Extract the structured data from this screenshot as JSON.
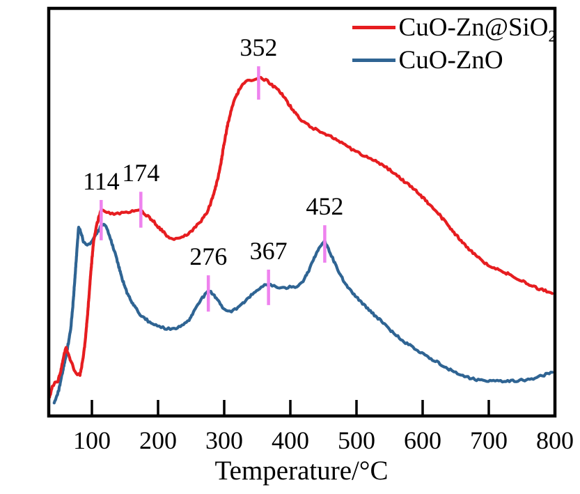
{
  "figure": {
    "background": "#ffffff"
  },
  "legend": {
    "items": [
      {
        "name": "CuO-Zn@SiO2",
        "label": "CuO-Zn@SiO",
        "label_sub": "2",
        "color": "#e61d20"
      },
      {
        "name": "CuO-ZnO",
        "label": "CuO-ZnO",
        "label_sub": "",
        "color": "#2f6493"
      }
    ]
  },
  "chart_data": {
    "type": "line",
    "title": "",
    "xlabel": "Temperature/°C",
    "ylabel": "",
    "x_ticks": [
      100,
      200,
      300,
      400,
      500,
      600,
      700,
      800
    ],
    "xlim": [
      35,
      800
    ],
    "y_axis": "intensity (arbitrary units, unlabeled axis)",
    "grid": false,
    "legend_position": "top-right",
    "annotation_marker_color": "#ee82ee",
    "annotations": [
      {
        "label": "114",
        "t": 114,
        "series": "CuO-Zn@SiO2",
        "u_top": 0.53,
        "u_bottom": 0.431
      },
      {
        "label": "174",
        "t": 174,
        "series": "CuO-Zn@SiO2",
        "u_top": 0.55,
        "u_bottom": 0.462
      },
      {
        "label": "352",
        "t": 352,
        "series": "CuO-Zn@SiO2",
        "u_top": 0.858,
        "u_bottom": 0.776
      },
      {
        "label": "276",
        "t": 276,
        "series": "CuO-ZnO",
        "u_top": 0.345,
        "u_bottom": 0.256
      },
      {
        "label": "367",
        "t": 367,
        "series": "CuO-ZnO",
        "u_top": 0.359,
        "u_bottom": 0.272
      },
      {
        "label": "452",
        "t": 452,
        "series": "CuO-ZnO",
        "u_top": 0.468,
        "u_bottom": 0.376
      }
    ],
    "series": [
      {
        "name": "CuO-Zn@SiO2",
        "color": "#e61d20",
        "peaks_celsius": [
          114,
          174,
          352
        ],
        "points": [
          [
            36,
            0.046
          ],
          [
            40,
            0.072
          ],
          [
            44,
            0.08
          ],
          [
            48,
            0.083
          ],
          [
            53,
            0.11
          ],
          [
            57,
            0.145
          ],
          [
            61,
            0.169
          ],
          [
            64,
            0.155
          ],
          [
            68,
            0.135
          ],
          [
            73,
            0.115
          ],
          [
            78,
            0.103
          ],
          [
            82,
            0.101
          ],
          [
            86,
            0.135
          ],
          [
            90,
            0.185
          ],
          [
            94,
            0.26
          ],
          [
            98,
            0.345
          ],
          [
            102,
            0.42
          ],
          [
            106,
            0.46
          ],
          [
            110,
            0.485
          ],
          [
            114,
            0.504
          ],
          [
            120,
            0.5
          ],
          [
            128,
            0.497
          ],
          [
            136,
            0.496
          ],
          [
            145,
            0.497
          ],
          [
            152,
            0.5
          ],
          [
            161,
            0.503
          ],
          [
            168,
            0.504
          ],
          [
            174,
            0.503
          ],
          [
            180,
            0.495
          ],
          [
            187,
            0.487
          ],
          [
            194,
            0.476
          ],
          [
            200,
            0.465
          ],
          [
            207,
            0.453
          ],
          [
            213,
            0.443
          ],
          [
            219,
            0.436
          ],
          [
            224,
            0.434
          ],
          [
            230,
            0.436
          ],
          [
            236,
            0.438
          ],
          [
            243,
            0.445
          ],
          [
            250,
            0.453
          ],
          [
            257,
            0.464
          ],
          [
            263,
            0.475
          ],
          [
            269,
            0.487
          ],
          [
            274,
            0.499
          ],
          [
            279,
            0.52
          ],
          [
            284,
            0.545
          ],
          [
            290,
            0.58
          ],
          [
            295,
            0.619
          ],
          [
            300,
            0.67
          ],
          [
            305,
            0.713
          ],
          [
            310,
            0.745
          ],
          [
            314,
            0.768
          ],
          [
            319,
            0.787
          ],
          [
            323,
            0.802
          ],
          [
            328,
            0.812
          ],
          [
            333,
            0.819
          ],
          [
            338,
            0.823
          ],
          [
            344,
            0.826
          ],
          [
            348,
            0.827
          ],
          [
            353,
            0.829
          ],
          [
            358,
            0.827
          ],
          [
            363,
            0.824
          ],
          [
            368,
            0.818
          ],
          [
            372,
            0.812
          ],
          [
            378,
            0.805
          ],
          [
            384,
            0.797
          ],
          [
            389,
            0.785
          ],
          [
            394,
            0.773
          ],
          [
            400,
            0.76
          ],
          [
            406,
            0.747
          ],
          [
            411,
            0.737
          ],
          [
            415,
            0.728
          ],
          [
            421,
            0.72
          ],
          [
            427,
            0.713
          ],
          [
            432,
            0.708
          ],
          [
            438,
            0.704
          ],
          [
            445,
            0.698
          ],
          [
            452,
            0.692
          ],
          [
            459,
            0.687
          ],
          [
            466,
            0.682
          ],
          [
            475,
            0.672
          ],
          [
            485,
            0.662
          ],
          [
            495,
            0.653
          ],
          [
            504,
            0.645
          ],
          [
            513,
            0.638
          ],
          [
            522,
            0.631
          ],
          [
            531,
            0.622
          ],
          [
            540,
            0.614
          ],
          [
            548,
            0.606
          ],
          [
            555,
            0.598
          ],
          [
            564,
            0.587
          ],
          [
            572,
            0.576
          ],
          [
            581,
            0.565
          ],
          [
            590,
            0.554
          ],
          [
            599,
            0.538
          ],
          [
            608,
            0.523
          ],
          [
            616,
            0.51
          ],
          [
            624,
            0.496
          ],
          [
            633,
            0.478
          ],
          [
            642,
            0.46
          ],
          [
            651,
            0.443
          ],
          [
            660,
            0.427
          ],
          [
            668,
            0.413
          ],
          [
            676,
            0.4
          ],
          [
            685,
            0.388
          ],
          [
            694,
            0.376
          ],
          [
            703,
            0.368
          ],
          [
            713,
            0.361
          ],
          [
            722,
            0.354
          ],
          [
            731,
            0.347
          ],
          [
            740,
            0.34
          ],
          [
            750,
            0.333
          ],
          [
            759,
            0.325
          ],
          [
            768,
            0.318
          ],
          [
            776,
            0.312
          ],
          [
            783,
            0.308
          ],
          [
            790,
            0.305
          ],
          [
            796,
            0.303
          ]
        ]
      },
      {
        "name": "CuO-ZnO",
        "color": "#2f6493",
        "peaks_celsius": [
          276,
          367,
          452
        ],
        "points": [
          [
            43,
            0.032
          ],
          [
            50,
            0.063
          ],
          [
            56,
            0.111
          ],
          [
            62,
            0.157
          ],
          [
            68,
            0.214
          ],
          [
            72,
            0.286
          ],
          [
            75,
            0.354
          ],
          [
            78,
            0.422
          ],
          [
            80,
            0.465
          ],
          [
            83,
            0.453
          ],
          [
            87,
            0.427
          ],
          [
            93,
            0.417
          ],
          [
            99,
            0.427
          ],
          [
            106,
            0.446
          ],
          [
            113,
            0.463
          ],
          [
            118,
            0.472
          ],
          [
            123,
            0.46
          ],
          [
            129,
            0.431
          ],
          [
            137,
            0.388
          ],
          [
            145,
            0.34
          ],
          [
            153,
            0.303
          ],
          [
            163,
            0.272
          ],
          [
            173,
            0.248
          ],
          [
            185,
            0.233
          ],
          [
            199,
            0.221
          ],
          [
            213,
            0.214
          ],
          [
            227,
            0.215
          ],
          [
            236,
            0.221
          ],
          [
            247,
            0.236
          ],
          [
            256,
            0.262
          ],
          [
            265,
            0.286
          ],
          [
            273,
            0.301
          ],
          [
            278,
            0.308
          ],
          [
            285,
            0.296
          ],
          [
            294,
            0.274
          ],
          [
            303,
            0.258
          ],
          [
            311,
            0.256
          ],
          [
            321,
            0.265
          ],
          [
            330,
            0.28
          ],
          [
            341,
            0.296
          ],
          [
            351,
            0.309
          ],
          [
            361,
            0.32
          ],
          [
            370,
            0.323
          ],
          [
            378,
            0.318
          ],
          [
            389,
            0.313
          ],
          [
            399,
            0.316
          ],
          [
            410,
            0.318
          ],
          [
            418,
            0.328
          ],
          [
            427,
            0.354
          ],
          [
            435,
            0.383
          ],
          [
            443,
            0.41
          ],
          [
            452,
            0.429
          ],
          [
            460,
            0.402
          ],
          [
            468,
            0.371
          ],
          [
            477,
            0.342
          ],
          [
            485,
            0.32
          ],
          [
            498,
            0.294
          ],
          [
            511,
            0.274
          ],
          [
            527,
            0.248
          ],
          [
            544,
            0.222
          ],
          [
            558,
            0.2
          ],
          [
            574,
            0.18
          ],
          [
            590,
            0.164
          ],
          [
            608,
            0.145
          ],
          [
            624,
            0.13
          ],
          [
            642,
            0.113
          ],
          [
            658,
            0.101
          ],
          [
            674,
            0.092
          ],
          [
            689,
            0.087
          ],
          [
            707,
            0.087
          ],
          [
            726,
            0.085
          ],
          [
            744,
            0.087
          ],
          [
            762,
            0.089
          ],
          [
            778,
            0.097
          ],
          [
            789,
            0.104
          ],
          [
            796,
            0.106
          ]
        ]
      }
    ]
  }
}
